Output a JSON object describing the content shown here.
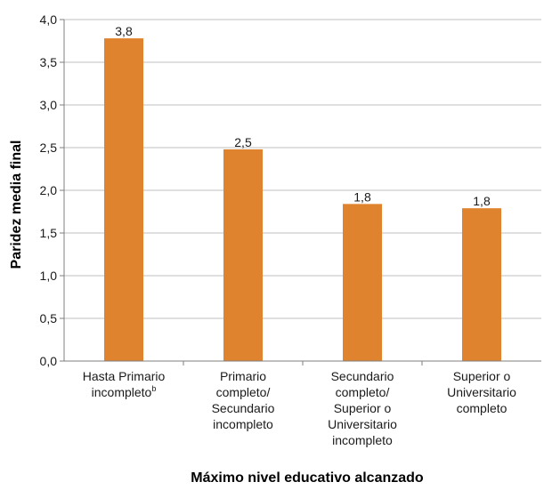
{
  "chart_data": {
    "type": "bar",
    "title": "",
    "xlabel": "Máximo nivel educativo alcanzado",
    "ylabel": "Paridez media final",
    "ylim": [
      0,
      4
    ],
    "yticks": [
      "0,0",
      "0,5",
      "1,0",
      "1,5",
      "2,0",
      "2,5",
      "3,0",
      "3,5",
      "4,0"
    ],
    "grid": "horizontal",
    "categories": [
      [
        "Hasta Primario",
        "incompleto"
      ],
      [
        "Primario",
        "completo/",
        "Secundario",
        "incompleto"
      ],
      [
        "Secundario",
        "completo/",
        "Superior o",
        "Universitario",
        "incompleto"
      ],
      [
        "Superior o",
        "Universitario",
        "completo"
      ]
    ],
    "category_superscripts": [
      "b",
      "",
      "",
      ""
    ],
    "values": [
      3.78,
      2.48,
      1.84,
      1.79
    ],
    "value_labels": [
      "3,8",
      "2,5",
      "1,8",
      "1,8"
    ],
    "bar_color": "#E0832E",
    "grid_color": "#BFBFBF",
    "axis_color": "#7F7F7F"
  }
}
